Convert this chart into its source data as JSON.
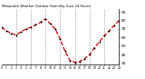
{
  "title": "Milwaukee Weather Outdoor Humidity (Last 24 Hours)",
  "x_values": [
    0,
    1,
    2,
    3,
    4,
    5,
    6,
    7,
    8,
    9,
    10,
    11,
    12,
    13,
    14,
    15,
    16,
    17,
    18,
    19,
    20,
    21,
    22,
    23,
    24
  ],
  "y_values": [
    72,
    68,
    65,
    63,
    67,
    70,
    72,
    75,
    78,
    82,
    76,
    70,
    58,
    44,
    33,
    31,
    32,
    35,
    40,
    48,
    55,
    62,
    68,
    74,
    80
  ],
  "line_color": "#dd0000",
  "marker_color": "#000000",
  "background_color": "#ffffff",
  "grid_color": "#999999",
  "ylim": [
    28,
    93
  ],
  "yticks": [
    30,
    40,
    50,
    60,
    70,
    80,
    90
  ],
  "ytick_labels": [
    "30",
    "40",
    "50",
    "60",
    "70",
    "80",
    "90"
  ],
  "xlim": [
    0,
    24
  ],
  "vgrid_positions": [
    3,
    6,
    9,
    12,
    15,
    18,
    21
  ]
}
